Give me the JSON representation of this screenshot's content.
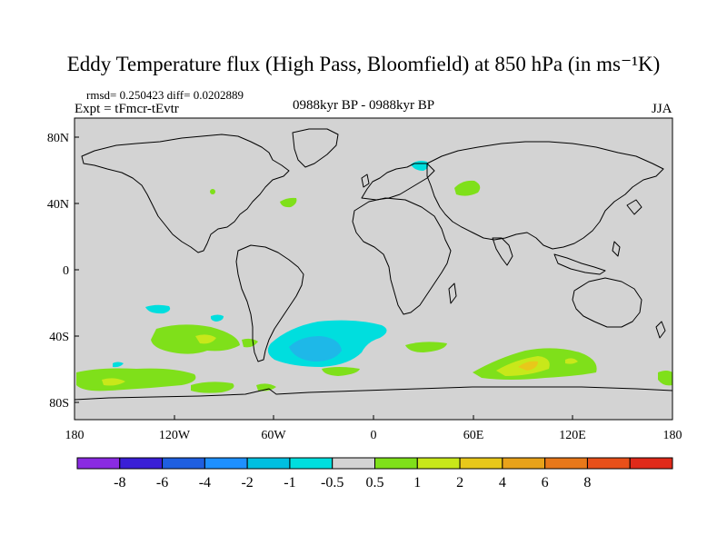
{
  "title": "Eddy Temperature flux (High Pass, Bloomfield) at 850 hPa (in ms⁻¹K)",
  "stats": "rmsd= 0.250423 diff= 0.0202889",
  "experiment": "Expt = tFmcr-tEvtr",
  "period": "0988kyr BP - 0988kyr BP",
  "season": "JJA",
  "map": {
    "background_color": "#d3d3d3",
    "coastline_color": "#000000",
    "lat_labels": [
      "80N",
      "40N",
      "0",
      "40S",
      "80S"
    ],
    "lon_labels": [
      "180",
      "120W",
      "60W",
      "0",
      "60E",
      "120E",
      "180"
    ]
  },
  "colorbar": {
    "colors": [
      "#8a2be2",
      "#3a1fd6",
      "#1f5fe0",
      "#1e90ff",
      "#00bfe0",
      "#00dede",
      "#d3d3d3",
      "#7fe01a",
      "#c8e81a",
      "#e8c81a",
      "#e8a21a",
      "#e8781a",
      "#e8501a",
      "#e02a1a"
    ],
    "labels": [
      "-8",
      "-6",
      "-4",
      "-2",
      "-1",
      "-0.5",
      "0.5",
      "1",
      "2",
      "4",
      "6",
      "8"
    ]
  },
  "anomalies": [
    {
      "region": "Scandinavia",
      "level": "-0.5 to -1",
      "color": "#00dede"
    },
    {
      "region": "Siberia",
      "level": "0.5 to 1",
      "color": "#7fe01a"
    },
    {
      "region": "North Atlantic",
      "level": "0.5 to 1",
      "color": "#7fe01a"
    },
    {
      "region": "South Atlantic",
      "level": "-1 to -2",
      "color": "#1eb8e8"
    },
    {
      "region": "South Pacific",
      "level": "1 to 2",
      "color": "#c8e81a"
    },
    {
      "region": "Southern Indian Ocean",
      "level": "1 to 4",
      "color": "#e8c81a"
    },
    {
      "region": "Southern Ocean",
      "level": "0.5 to 1",
      "color": "#7fe01a"
    }
  ]
}
